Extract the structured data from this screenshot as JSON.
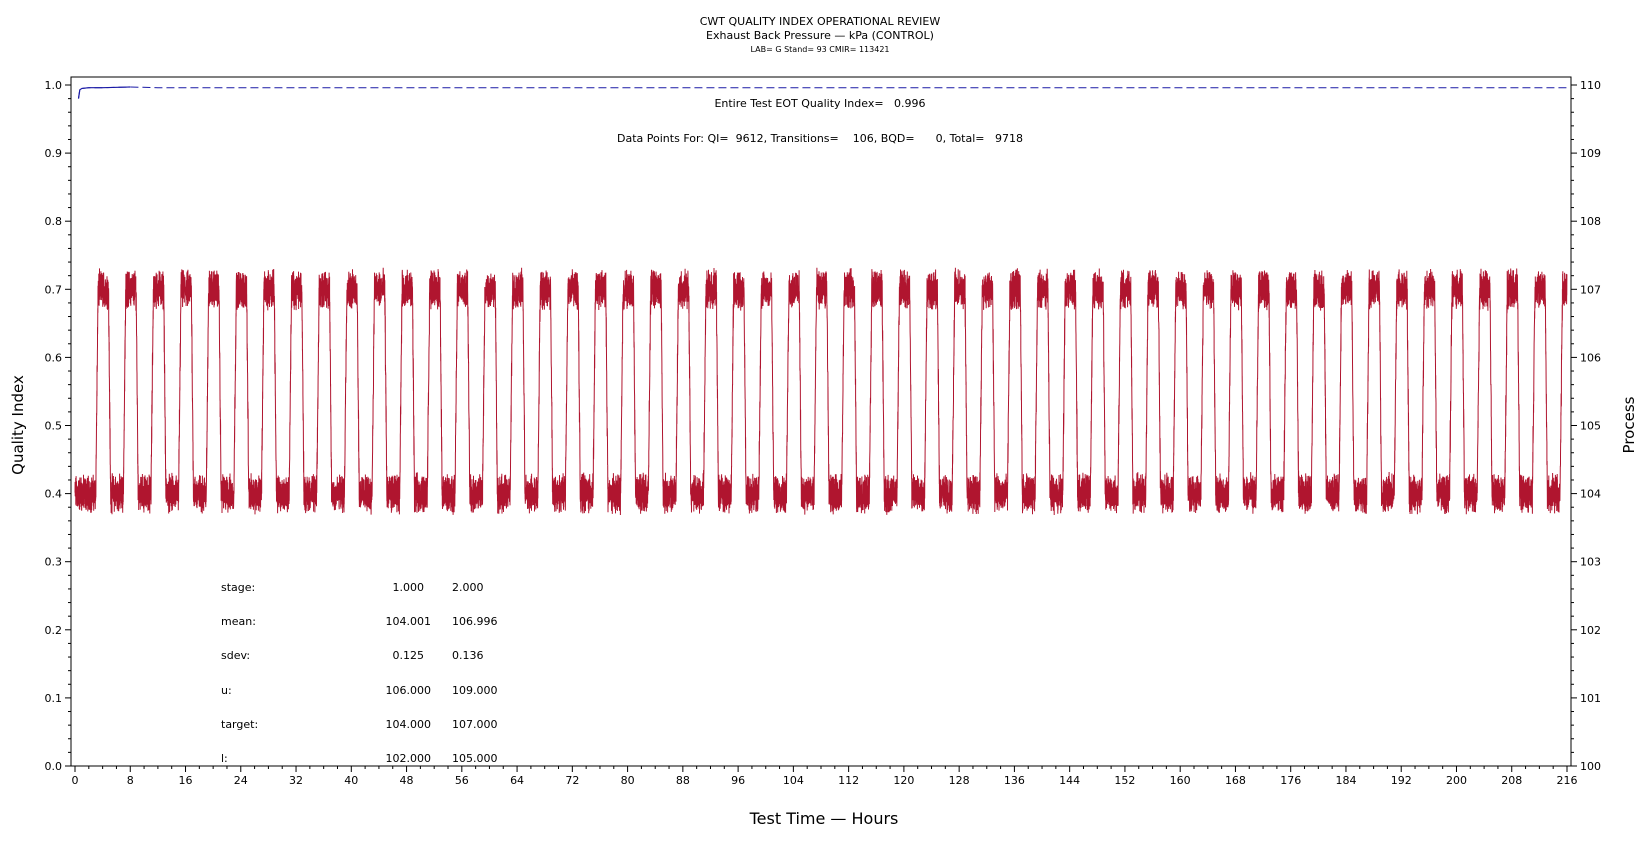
{
  "titles": {
    "line1": "CWT QUALITY INDEX OPERATIONAL REVIEW",
    "line2": "Exhaust Back Pressure — kPa (CONTROL)",
    "line3": "LAB= G Stand= 93 CMIR= 113421"
  },
  "annotations": {
    "quality_index": "Entire Test EOT Quality Index=   0.996",
    "data_points": "Data Points For: QI=  9612, Transitions=    106, BQD=      0, Total=   9718"
  },
  "stats_table": {
    "rows": [
      {
        "label": "stage:",
        "v1": "1.000",
        "v2": "2.000"
      },
      {
        "label": "mean:",
        "v1": "104.001",
        "v2": "106.996"
      },
      {
        "label": "sdev:",
        "v1": "0.125",
        "v2": "0.136"
      },
      {
        "label": "u:",
        "v1": "106.000",
        "v2": "109.000"
      },
      {
        "label": "target:",
        "v1": "104.000",
        "v2": "107.000"
      },
      {
        "label": "l:",
        "v1": "102.000",
        "v2": "105.000"
      }
    ]
  },
  "colors": {
    "process": "#b0152f",
    "quality_index": "#1a1aa6",
    "axis": "#000000"
  },
  "chart_data": {
    "type": "line",
    "xlabel": "Test Time — Hours",
    "ylabel": "Quality Index",
    "y2label": "Process",
    "xlim": [
      0,
      216
    ],
    "ylim": [
      0.0,
      1.0
    ],
    "y2lim": [
      100,
      110
    ],
    "x_ticks": [
      0,
      8,
      16,
      24,
      32,
      40,
      48,
      56,
      64,
      72,
      80,
      88,
      96,
      104,
      112,
      120,
      128,
      136,
      144,
      152,
      160,
      168,
      176,
      184,
      192,
      200,
      208,
      216
    ],
    "y_ticks": [
      "0.0",
      "0.1",
      "0.2",
      "0.3",
      "0.4",
      "0.5",
      "0.6",
      "0.7",
      "0.8",
      "0.9",
      "1.0"
    ],
    "y2_ticks": [
      "100",
      "101",
      "102",
      "103",
      "104",
      "105",
      "106",
      "107",
      "108",
      "109",
      "110"
    ],
    "series": [
      {
        "axis": "right",
        "pattern": "square-wave alternating between stage 1 and stage 2",
        "low_level": 104.0,
        "high_level": 107.0,
        "start_hour": 0.0,
        "cycle_hours": 4.0,
        "first_rise_hour": 3.0,
        "noise": 0.4
      },
      {
        "axis": "left",
        "values_x": [
          0.5,
          0.7,
          1.0,
          2.0,
          4.0,
          8.0,
          12.0,
          216.0
        ],
        "values_y": [
          0.98,
          0.993,
          0.995,
          0.996,
          0.996,
          0.997,
          0.996,
          0.996
        ]
      }
    ],
    "grid": false,
    "legend": "none"
  }
}
